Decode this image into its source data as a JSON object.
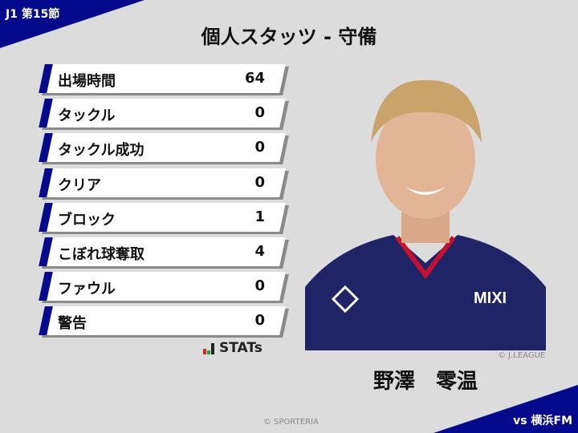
{
  "header": {
    "round": "J1 第15節",
    "title": "個人スタッツ - 守備"
  },
  "stats": [
    {
      "label": "出場時間",
      "value": "64"
    },
    {
      "label": "タックル",
      "value": "0"
    },
    {
      "label": "タックル成功",
      "value": "0"
    },
    {
      "label": "クリア",
      "value": "0"
    },
    {
      "label": "ブロック",
      "value": "1"
    },
    {
      "label": "こぼれ球奪取",
      "value": "4"
    },
    {
      "label": "ファウル",
      "value": "0"
    },
    {
      "label": "警告",
      "value": "0"
    }
  ],
  "logo": {
    "text": "STATs"
  },
  "player": {
    "name": "野澤　零温",
    "photo_credit": "© J.LEAGUE"
  },
  "footer": {
    "credit": "© SPORTERIA",
    "opponent": "vs 横浜FM"
  },
  "colors": {
    "accent": "#050a8c",
    "background": "#dcdcdc"
  }
}
